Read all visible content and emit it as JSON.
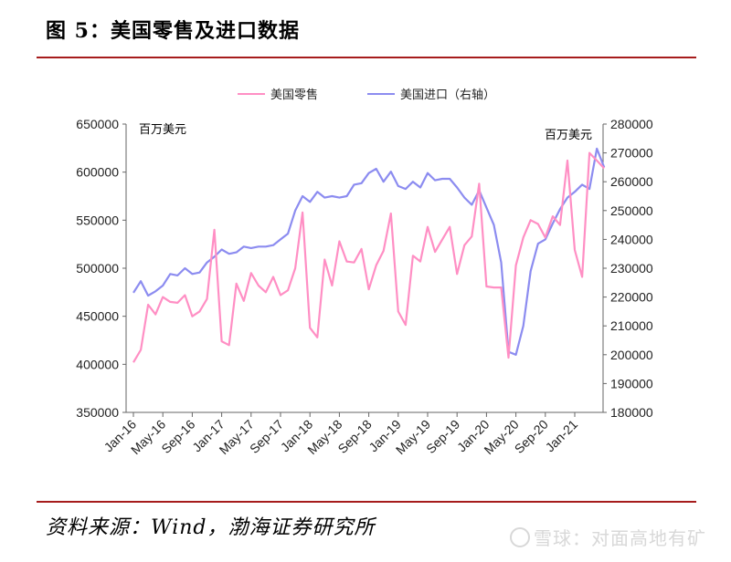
{
  "header": {
    "title": "图 5：美国零售及进口数据"
  },
  "footer": {
    "source": "资料来源：Wind，渤海证券研究所",
    "watermark": "雪球：对面高地有矿"
  },
  "chart_data": {
    "type": "line",
    "title": "",
    "legend_position": "top-center",
    "grid": false,
    "categories": [
      "Jan-16",
      "Feb-16",
      "Mar-16",
      "Apr-16",
      "May-16",
      "Jun-16",
      "Jul-16",
      "Aug-16",
      "Sep-16",
      "Oct-16",
      "Nov-16",
      "Dec-16",
      "Jan-17",
      "Feb-17",
      "Mar-17",
      "Apr-17",
      "May-17",
      "Jun-17",
      "Jul-17",
      "Aug-17",
      "Sep-17",
      "Oct-17",
      "Nov-17",
      "Dec-17",
      "Jan-18",
      "Feb-18",
      "Mar-18",
      "Apr-18",
      "May-18",
      "Jun-18",
      "Jul-18",
      "Aug-18",
      "Sep-18",
      "Oct-18",
      "Nov-18",
      "Dec-18",
      "Jan-19",
      "Feb-19",
      "Mar-19",
      "Apr-19",
      "May-19",
      "Jun-19",
      "Jul-19",
      "Aug-19",
      "Sep-19",
      "Oct-19",
      "Nov-19",
      "Dec-19",
      "Jan-20",
      "Feb-20",
      "Mar-20",
      "Apr-20",
      "May-20",
      "Jun-20",
      "Jul-20",
      "Aug-20",
      "Sep-20",
      "Oct-20",
      "Nov-20",
      "Dec-20",
      "Jan-21",
      "Feb-21",
      "Mar-21",
      "Apr-21",
      "May-21"
    ],
    "x_tick_labels": [
      "Jan-16",
      "May-16",
      "Sep-16",
      "Jan-17",
      "May-17",
      "Sep-17",
      "Jan-18",
      "May-18",
      "Sep-18",
      "Jan-19",
      "May-19",
      "Sep-19",
      "Jan-20",
      "May-20",
      "Sep-20",
      "Jan-21"
    ],
    "left_axis": {
      "unit": "百万美元",
      "ylim": [
        350000,
        650000
      ],
      "ticks": [
        "650000",
        "600000",
        "550000",
        "500000",
        "450000",
        "400000",
        "350000"
      ]
    },
    "right_axis": {
      "unit": "百万美元",
      "ylim": [
        180000,
        280000
      ],
      "ticks": [
        "280000",
        "270000",
        "260000",
        "250000",
        "240000",
        "230000",
        "220000",
        "210000",
        "200000",
        "190000",
        "180000"
      ]
    },
    "series": [
      {
        "name": "美国零售",
        "axis": "left",
        "color": "#ff8fc4",
        "values": [
          402000,
          415000,
          462000,
          452000,
          470000,
          465000,
          464000,
          472000,
          450000,
          455000,
          468000,
          540000,
          424000,
          420000,
          484000,
          466000,
          495000,
          482000,
          475000,
          491000,
          472000,
          477000,
          500000,
          558000,
          438000,
          428000,
          509000,
          482000,
          528000,
          507000,
          506000,
          520000,
          478000,
          503000,
          518000,
          557000,
          455000,
          441000,
          513000,
          507000,
          543000,
          517000,
          530000,
          543000,
          494000,
          524000,
          533000,
          588000,
          481000,
          480000,
          480000,
          407000,
          503000,
          532000,
          550000,
          546000,
          532000,
          554000,
          545000,
          612000,
          519000,
          491000,
          620000,
          612000,
          604000
        ]
      },
      {
        "name": "美国进口（右轴）",
        "axis": "right",
        "color": "#8c8cf0",
        "values": [
          221500,
          225500,
          220500,
          222000,
          224000,
          228000,
          227500,
          230000,
          228000,
          228500,
          232000,
          234000,
          236500,
          235000,
          235500,
          237500,
          237000,
          237500,
          237500,
          238000,
          240000,
          242000,
          250000,
          255000,
          253000,
          256500,
          254500,
          255000,
          254500,
          255000,
          259000,
          259500,
          263000,
          264500,
          260000,
          263500,
          258500,
          257500,
          260000,
          258000,
          263000,
          260500,
          261000,
          261000,
          258000,
          254500,
          252000,
          257000,
          251000,
          245000,
          232000,
          201000,
          200000,
          210000,
          229000,
          238500,
          240000,
          245500,
          250500,
          254500,
          256500,
          259000,
          257500,
          271500,
          265000
        ]
      }
    ]
  }
}
